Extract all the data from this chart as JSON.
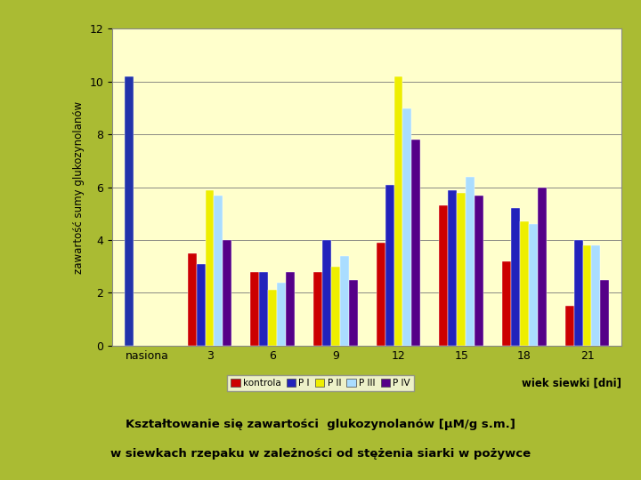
{
  "categories": [
    "nasiona",
    "3",
    "6",
    "9",
    "12",
    "15",
    "18",
    "21"
  ],
  "series": {
    "kontrola": [
      10.2,
      3.5,
      2.8,
      2.8,
      3.9,
      5.3,
      3.2,
      1.5
    ],
    "P I": [
      0.0,
      3.1,
      2.8,
      4.0,
      6.1,
      5.9,
      5.2,
      4.0
    ],
    "P II": [
      0.0,
      5.9,
      2.1,
      3.0,
      10.2,
      5.8,
      4.7,
      3.8
    ],
    "P III": [
      0.0,
      5.7,
      2.4,
      3.4,
      9.0,
      6.4,
      4.6,
      3.8
    ],
    "P IV": [
      0.0,
      4.0,
      2.8,
      2.5,
      7.8,
      5.7,
      6.0,
      2.5
    ]
  },
  "colors": {
    "kontrola": "#cc0000",
    "P I": "#2222bb",
    "P II": "#eeee00",
    "P III": "#aaddff",
    "P IV": "#550088"
  },
  "nasiona_color": "#2233aa",
  "ylabel": "zawartość sumy glukozynolanów",
  "xlabel": "wiek siewki [dni]",
  "ylim": [
    0,
    12
  ],
  "yticks": [
    0,
    2,
    4,
    6,
    8,
    10,
    12
  ],
  "title_line1": "Kształtowanie się zawartości  glukozynolanów [μM/g s.m.]",
  "title_line2": "w siewkach rzepaku w zależności od stężenia siarki w pożywce",
  "bg_outer": "#aabb33",
  "bg_plot": "#ffffcc",
  "legend_labels": [
    "kontrola",
    "P I",
    "P II",
    "P III",
    "P IV"
  ]
}
